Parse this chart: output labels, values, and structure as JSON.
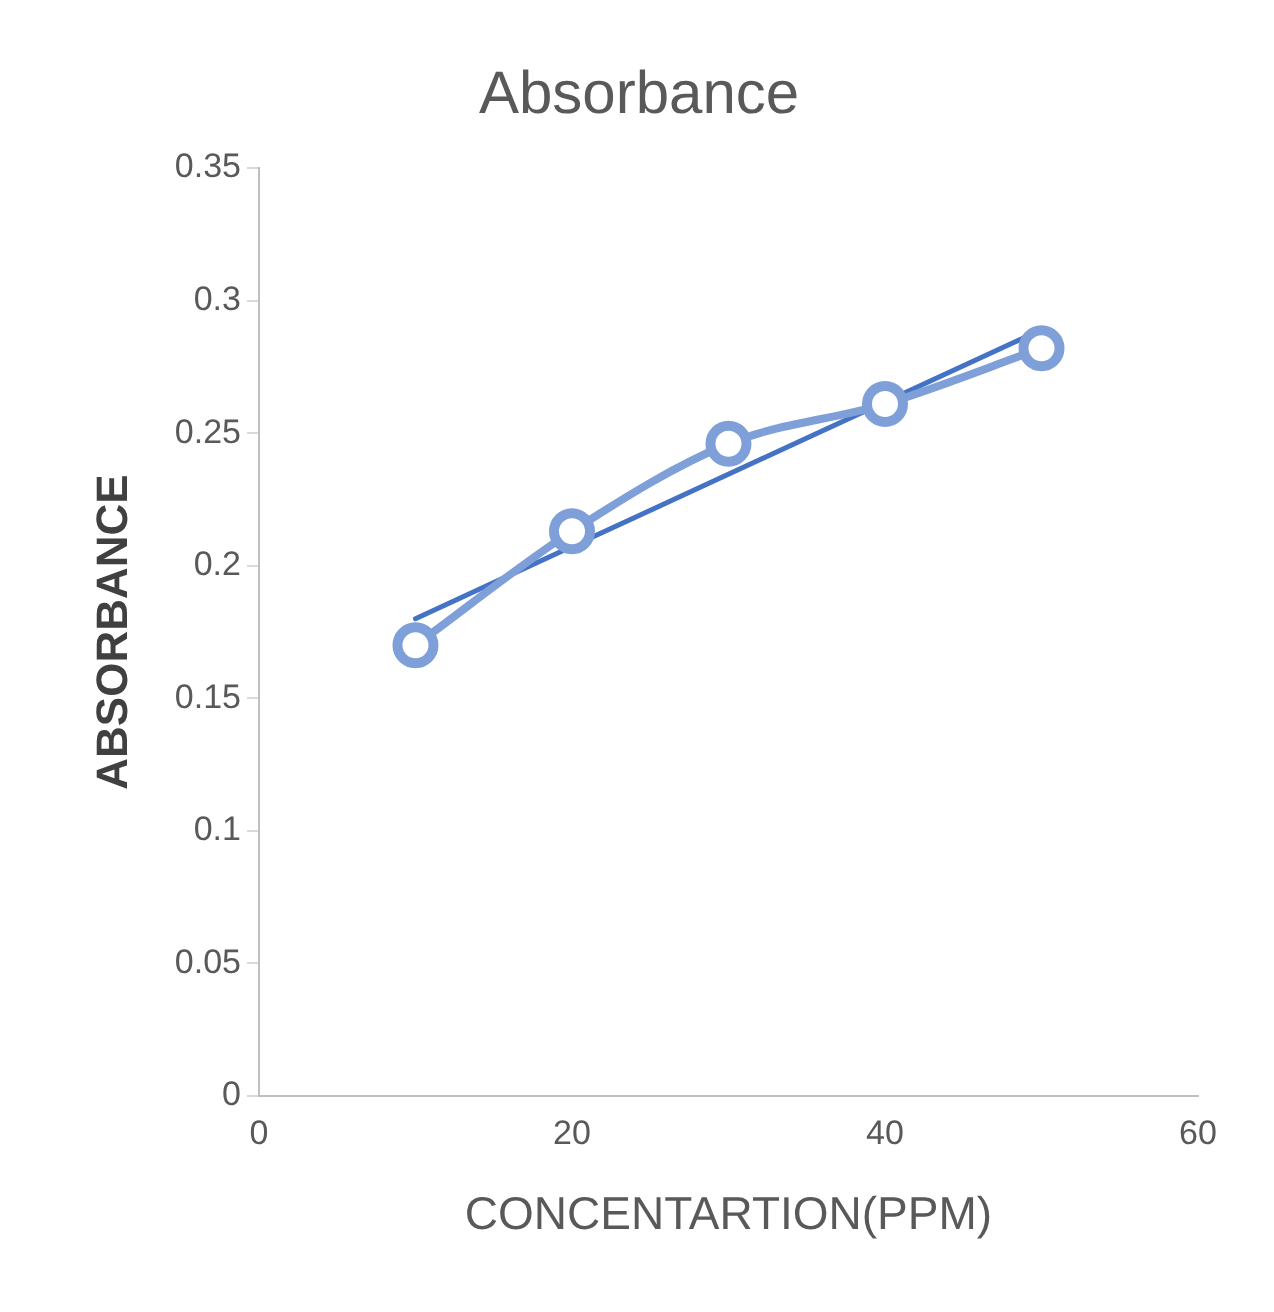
{
  "chart_data": {
    "type": "line",
    "title": "Absorbance",
    "xlabel": "CONCENTARTION(PPM)",
    "ylabel": "ABSORBANCE",
    "xlim": [
      0,
      60
    ],
    "xticks": [
      0,
      20,
      40,
      60
    ],
    "ylim": [
      0,
      0.35
    ],
    "yticks": [
      0,
      0.05,
      0.1,
      0.15,
      0.2,
      0.25,
      0.3,
      0.35
    ],
    "grid": false,
    "legend": false,
    "marker": "circle",
    "series": [
      {
        "color": "#7f9fd8",
        "x": [
          10,
          20,
          30,
          40,
          50
        ],
        "values": [
          0.17,
          0.213,
          0.246,
          0.261,
          0.282
        ]
      },
      {
        "type": "line",
        "color": "#4472c4",
        "marker": "none",
        "x": [
          10,
          50
        ],
        "values": [
          0.18,
          0.289
        ]
      }
    ]
  }
}
